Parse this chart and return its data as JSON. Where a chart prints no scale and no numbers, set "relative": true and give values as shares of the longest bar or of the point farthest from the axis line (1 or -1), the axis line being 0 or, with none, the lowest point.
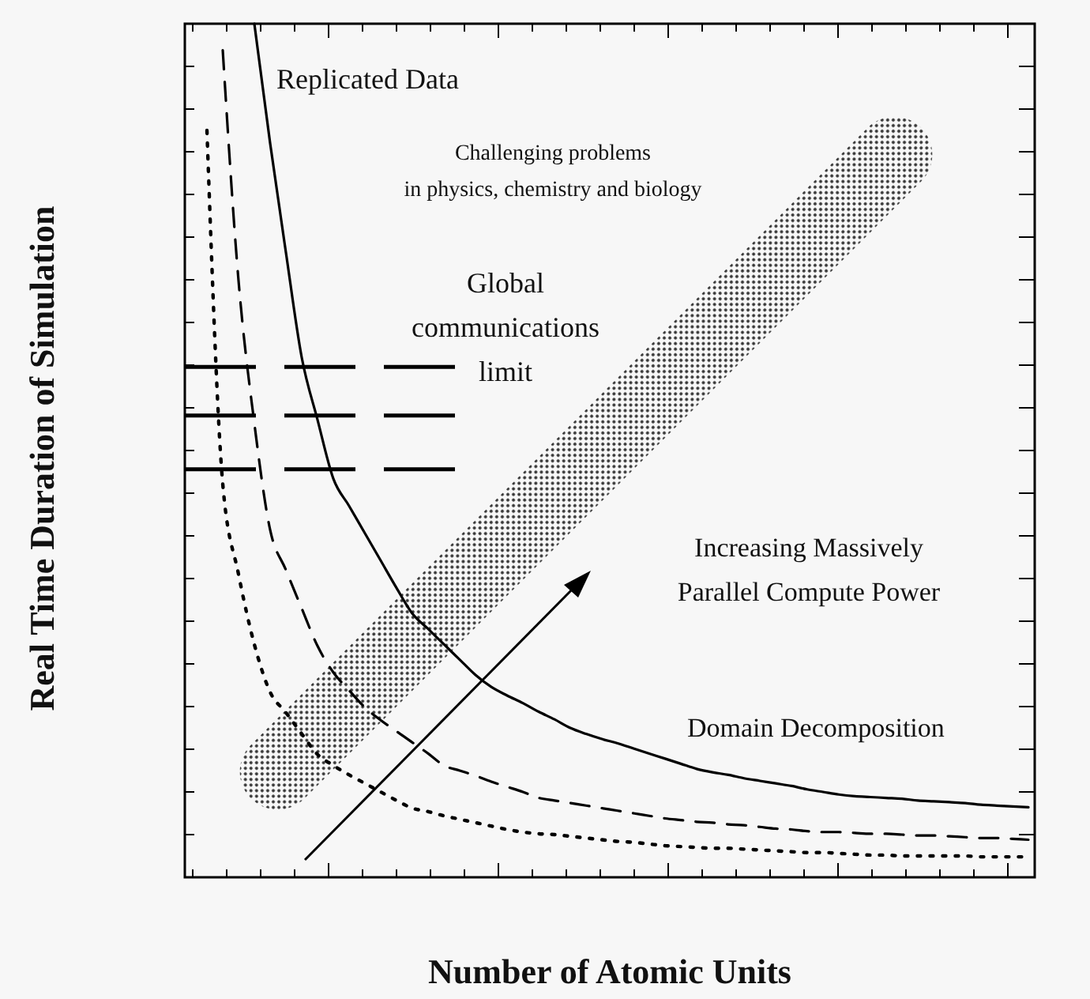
{
  "chart_data": {
    "type": "line",
    "relative": true,
    "xlabel": "Number of Atomic Units",
    "ylabel": "Real Time Duration of Simulation",
    "categories": [
      null,
      null,
      null,
      null,
      null,
      null,
      null,
      null,
      null,
      null,
      null,
      null,
      null,
      null,
      null,
      null,
      null,
      null,
      null,
      null,
      null,
      null,
      null,
      null,
      null,
      null,
      null,
      null,
      null,
      null,
      null,
      null,
      null,
      null,
      null,
      null,
      null,
      null,
      null,
      null,
      null,
      null,
      null,
      null,
      null,
      null,
      null,
      null,
      null,
      null,
      null,
      null,
      null,
      null
    ],
    "series": [
      {
        "color": "#000000",
        "line_style": "solid",
        "values": [
          null,
          null,
          null,
          null,
          1.0,
          0.86,
          0.732,
          0.609,
          0.536,
          0.467,
          0.435,
          0.403,
          0.371,
          0.339,
          0.309,
          0.291,
          0.273,
          0.255,
          0.237,
          0.223,
          0.213,
          0.204,
          0.194,
          0.185,
          0.175,
          0.168,
          0.162,
          0.157,
          0.151,
          0.145,
          0.139,
          0.133,
          0.127,
          0.123,
          0.12,
          0.116,
          0.113,
          0.11,
          0.107,
          0.103,
          0.1,
          0.097,
          0.095,
          0.094,
          0.093,
          0.092,
          0.09,
          0.089,
          0.088,
          0.087,
          0.085,
          0.084,
          0.083,
          0.082
        ]
      },
      {
        "color": "#000000",
        "line_style": "dashed",
        "values": [
          null,
          null,
          0.969,
          0.699,
          0.532,
          0.407,
          0.36,
          0.315,
          0.271,
          0.24,
          0.219,
          0.199,
          0.184,
          0.171,
          0.158,
          0.145,
          0.131,
          0.125,
          0.119,
          0.112,
          0.106,
          0.1,
          0.093,
          0.09,
          0.087,
          0.084,
          0.081,
          0.078,
          0.075,
          0.072,
          0.069,
          0.067,
          0.065,
          0.064,
          0.062,
          0.061,
          0.059,
          0.057,
          0.056,
          0.054,
          0.053,
          0.053,
          0.052,
          0.051,
          0.051,
          0.05,
          0.049,
          0.049,
          0.048,
          0.047,
          0.046,
          0.046,
          0.045,
          0.044
        ]
      },
      {
        "color": "#000000",
        "line_style": "dotted",
        "values": [
          null,
          0.875,
          0.461,
          0.355,
          0.273,
          0.217,
          0.193,
          0.168,
          0.144,
          0.131,
          0.12,
          0.11,
          0.1,
          0.09,
          0.081,
          0.077,
          0.072,
          0.068,
          0.064,
          0.06,
          0.056,
          0.053,
          0.051,
          0.05,
          0.048,
          0.046,
          0.044,
          0.042,
          0.041,
          0.039,
          0.037,
          0.036,
          0.035,
          0.034,
          0.034,
          0.033,
          0.032,
          0.031,
          0.03,
          0.029,
          0.029,
          0.028,
          0.027,
          0.026,
          0.026,
          0.025,
          0.025,
          0.025,
          0.025,
          0.025,
          0.024,
          0.024,
          0.024,
          0.024
        ]
      }
    ],
    "ref_lines": [
      {
        "axis": "y",
        "value": 0.598,
        "color": "#000000",
        "line_style": "dashed"
      },
      {
        "axis": "y",
        "value": 0.541,
        "color": "#000000",
        "line_style": "dashed"
      },
      {
        "axis": "y",
        "value": 0.478,
        "color": "#000000",
        "line_style": "dashed"
      }
    ],
    "annotations": [
      "Replicated Data",
      "Challenging problems\nin physics, chemistry and biology",
      "Global\ncommunications\nlimit",
      "Increasing Massively\nParallel Compute Power",
      "Domain Decomposition"
    ]
  }
}
